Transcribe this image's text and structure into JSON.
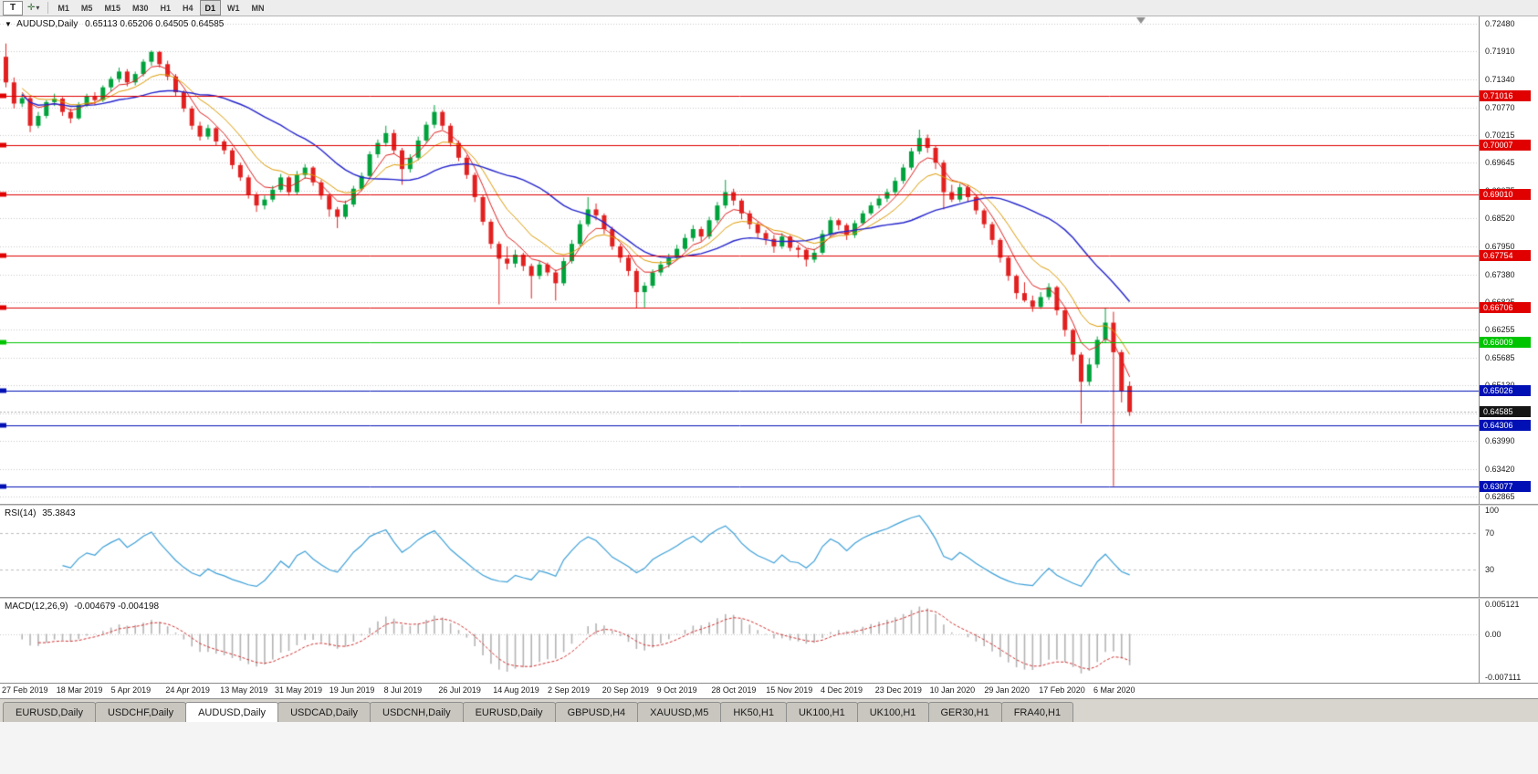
{
  "toolbar": {
    "templates_label": "T",
    "tool_icon": "✛",
    "dropdown_icon": "▾",
    "timeframes": [
      "M1",
      "M5",
      "M15",
      "M30",
      "H1",
      "H4",
      "D1",
      "W1",
      "MN"
    ],
    "active_timeframe": "D1"
  },
  "chart_data": {
    "type": "candlestick",
    "legend": {
      "marker": "▼",
      "symbol": "AUDUSD,Daily",
      "ohlc": "0.65113 0.65206 0.64505 0.64585"
    },
    "up_color": "#00a23c",
    "down_color": "#e22020",
    "ylim": [
      0.6272,
      0.7262
    ],
    "y_ticks": [
      "0.72480",
      "0.71910",
      "0.71340",
      "0.70770",
      "0.70215",
      "0.69645",
      "0.69075",
      "0.68520",
      "0.67950",
      "0.67380",
      "0.66825",
      "0.66255",
      "0.65685",
      "0.65130",
      "0.64560",
      "0.63990",
      "0.63420",
      "0.62865"
    ],
    "x_labels": [
      "27 Feb 2019",
      "18 Mar 2019",
      "5 Apr 2019",
      "24 Apr 2019",
      "13 May 2019",
      "31 May 2019",
      "19 Jun 2019",
      "8 Jul 2019",
      "26 Jul 2019",
      "14 Aug 2019",
      "2 Sep 2019",
      "20 Sep 2019",
      "9 Oct 2019",
      "28 Oct 2019",
      "15 Nov 2019",
      "4 Dec 2019",
      "23 Dec 2019",
      "10 Jan 2020",
      "29 Jan 2020",
      "17 Feb 2020",
      "6 Mar 2020"
    ],
    "candles": [
      [
        0.718,
        0.7207,
        0.7118,
        0.7128
      ],
      [
        0.7128,
        0.7138,
        0.7075,
        0.7085
      ],
      [
        0.7085,
        0.7105,
        0.7078,
        0.7096
      ],
      [
        0.7096,
        0.7099,
        0.7027,
        0.704
      ],
      [
        0.704,
        0.7068,
        0.7035,
        0.706
      ],
      [
        0.706,
        0.7092,
        0.7055,
        0.7088
      ],
      [
        0.7088,
        0.7105,
        0.708,
        0.7095
      ],
      [
        0.7095,
        0.7098,
        0.706,
        0.7068
      ],
      [
        0.7068,
        0.7075,
        0.7045,
        0.7055
      ],
      [
        0.7055,
        0.7088,
        0.7052,
        0.7082
      ],
      [
        0.7082,
        0.7105,
        0.7078,
        0.71
      ],
      [
        0.71,
        0.7108,
        0.7082,
        0.7092
      ],
      [
        0.7092,
        0.7122,
        0.7088,
        0.7118
      ],
      [
        0.7118,
        0.714,
        0.711,
        0.7135
      ],
      [
        0.7135,
        0.7158,
        0.7128,
        0.715
      ],
      [
        0.715,
        0.7155,
        0.712,
        0.7128
      ],
      [
        0.7128,
        0.715,
        0.7122,
        0.7145
      ],
      [
        0.7145,
        0.7175,
        0.714,
        0.717
      ],
      [
        0.717,
        0.7193,
        0.7162,
        0.719
      ],
      [
        0.719,
        0.7192,
        0.7158,
        0.7165
      ],
      [
        0.7165,
        0.7172,
        0.7132,
        0.714
      ],
      [
        0.714,
        0.7145,
        0.71,
        0.7108
      ],
      [
        0.7108,
        0.7112,
        0.7068,
        0.7075
      ],
      [
        0.7075,
        0.708,
        0.7032,
        0.704
      ],
      [
        0.704,
        0.7048,
        0.701,
        0.7018
      ],
      [
        0.7018,
        0.7042,
        0.7012,
        0.7035
      ],
      [
        0.7035,
        0.7038,
        0.7,
        0.7008
      ],
      [
        0.7008,
        0.7012,
        0.6982,
        0.699
      ],
      [
        0.699,
        0.6995,
        0.6952,
        0.696
      ],
      [
        0.696,
        0.6965,
        0.6928,
        0.6935
      ],
      [
        0.6935,
        0.694,
        0.6892,
        0.69
      ],
      [
        0.69,
        0.6905,
        0.6865,
        0.6878
      ],
      [
        0.6878,
        0.6898,
        0.687,
        0.689
      ],
      [
        0.689,
        0.6918,
        0.6885,
        0.691
      ],
      [
        0.691,
        0.6942,
        0.6905,
        0.6935
      ],
      [
        0.6935,
        0.6938,
        0.6898,
        0.6905
      ],
      [
        0.6905,
        0.6948,
        0.69,
        0.694
      ],
      [
        0.694,
        0.6962,
        0.6932,
        0.6955
      ],
      [
        0.6955,
        0.6958,
        0.6918,
        0.6925
      ],
      [
        0.6925,
        0.693,
        0.689,
        0.6898
      ],
      [
        0.6898,
        0.6902,
        0.6855,
        0.687
      ],
      [
        0.687,
        0.6875,
        0.6832,
        0.6855
      ],
      [
        0.6855,
        0.6888,
        0.685,
        0.688
      ],
      [
        0.688,
        0.6918,
        0.6875,
        0.6912
      ],
      [
        0.6912,
        0.6945,
        0.6908,
        0.6938
      ],
      [
        0.6938,
        0.6988,
        0.6932,
        0.6982
      ],
      [
        0.6982,
        0.7012,
        0.6975,
        0.7005
      ],
      [
        0.7005,
        0.704,
        0.6998,
        0.7025
      ],
      [
        0.7025,
        0.7032,
        0.6982,
        0.699
      ],
      [
        0.699,
        0.6995,
        0.692,
        0.6952
      ],
      [
        0.6952,
        0.6982,
        0.6945,
        0.6975
      ],
      [
        0.6975,
        0.7018,
        0.697,
        0.701
      ],
      [
        0.701,
        0.7048,
        0.7005,
        0.7042
      ],
      [
        0.7042,
        0.7082,
        0.7035,
        0.7068
      ],
      [
        0.7068,
        0.7072,
        0.7032,
        0.704
      ],
      [
        0.704,
        0.7045,
        0.6998,
        0.7005
      ],
      [
        0.7005,
        0.701,
        0.6968,
        0.6975
      ],
      [
        0.6975,
        0.698,
        0.6932,
        0.694
      ],
      [
        0.694,
        0.6945,
        0.6885,
        0.6895
      ],
      [
        0.6895,
        0.69,
        0.6838,
        0.6845
      ],
      [
        0.6845,
        0.685,
        0.679,
        0.68
      ],
      [
        0.68,
        0.6805,
        0.6677,
        0.677
      ],
      [
        0.677,
        0.6795,
        0.6748,
        0.676
      ],
      [
        0.676,
        0.6788,
        0.6752,
        0.6778
      ],
      [
        0.6778,
        0.6782,
        0.6745,
        0.6755
      ],
      [
        0.6755,
        0.676,
        0.6689,
        0.6735
      ],
      [
        0.6735,
        0.6765,
        0.6728,
        0.6758
      ],
      [
        0.6758,
        0.6762,
        0.6735,
        0.6742
      ],
      [
        0.6742,
        0.6748,
        0.6685,
        0.672
      ],
      [
        0.672,
        0.6772,
        0.6715,
        0.6765
      ],
      [
        0.6765,
        0.6808,
        0.676,
        0.68
      ],
      [
        0.68,
        0.6848,
        0.6795,
        0.684
      ],
      [
        0.684,
        0.6895,
        0.6835,
        0.687
      ],
      [
        0.687,
        0.6882,
        0.6848,
        0.6858
      ],
      [
        0.6858,
        0.6862,
        0.682,
        0.683
      ],
      [
        0.683,
        0.6835,
        0.6788,
        0.6795
      ],
      [
        0.6795,
        0.68,
        0.6762,
        0.6772
      ],
      [
        0.6772,
        0.6778,
        0.6735,
        0.6745
      ],
      [
        0.6745,
        0.675,
        0.667,
        0.6702
      ],
      [
        0.6702,
        0.6722,
        0.6671,
        0.6715
      ],
      [
        0.6715,
        0.6748,
        0.671,
        0.6742
      ],
      [
        0.6742,
        0.6765,
        0.6735,
        0.6758
      ],
      [
        0.6758,
        0.678,
        0.6752,
        0.6772
      ],
      [
        0.6772,
        0.6798,
        0.6768,
        0.679
      ],
      [
        0.679,
        0.682,
        0.6785,
        0.6812
      ],
      [
        0.6812,
        0.6838,
        0.6805,
        0.683
      ],
      [
        0.683,
        0.6835,
        0.6805,
        0.6815
      ],
      [
        0.6815,
        0.6855,
        0.681,
        0.6848
      ],
      [
        0.6848,
        0.6885,
        0.6842,
        0.6878
      ],
      [
        0.6878,
        0.693,
        0.6872,
        0.6905
      ],
      [
        0.6905,
        0.6912,
        0.6878,
        0.6888
      ],
      [
        0.6888,
        0.6892,
        0.685,
        0.6862
      ],
      [
        0.6862,
        0.6868,
        0.683,
        0.684
      ],
      [
        0.684,
        0.6845,
        0.6812,
        0.6822
      ],
      [
        0.6822,
        0.6828,
        0.6798,
        0.681
      ],
      [
        0.681,
        0.6818,
        0.6782,
        0.6795
      ],
      [
        0.6795,
        0.6822,
        0.679,
        0.6815
      ],
      [
        0.6815,
        0.6818,
        0.6785,
        0.6792
      ],
      [
        0.6792,
        0.6798,
        0.6772,
        0.6788
      ],
      [
        0.6788,
        0.679,
        0.6754,
        0.6768
      ],
      [
        0.6768,
        0.679,
        0.6762,
        0.6782
      ],
      [
        0.6782,
        0.6828,
        0.6778,
        0.682
      ],
      [
        0.682,
        0.6855,
        0.6815,
        0.6848
      ],
      [
        0.6848,
        0.6852,
        0.6828,
        0.6838
      ],
      [
        0.6838,
        0.6842,
        0.6808,
        0.6818
      ],
      [
        0.6818,
        0.6848,
        0.6812,
        0.6842
      ],
      [
        0.6842,
        0.6868,
        0.6838,
        0.6862
      ],
      [
        0.6862,
        0.6885,
        0.6858,
        0.6878
      ],
      [
        0.6878,
        0.6898,
        0.6872,
        0.6892
      ],
      [
        0.6892,
        0.6912,
        0.6885,
        0.6905
      ],
      [
        0.6905,
        0.6935,
        0.69,
        0.6928
      ],
      [
        0.6928,
        0.6962,
        0.6922,
        0.6955
      ],
      [
        0.6955,
        0.6995,
        0.695,
        0.6988
      ],
      [
        0.6988,
        0.7032,
        0.6982,
        0.7015
      ],
      [
        0.7015,
        0.7022,
        0.6985,
        0.6995
      ],
      [
        0.6995,
        0.7,
        0.6952,
        0.6965
      ],
      [
        0.6965,
        0.697,
        0.687,
        0.6905
      ],
      [
        0.6905,
        0.692,
        0.6885,
        0.689
      ],
      [
        0.689,
        0.6922,
        0.6885,
        0.6915
      ],
      [
        0.6915,
        0.692,
        0.6885,
        0.6895
      ],
      [
        0.6895,
        0.69,
        0.686,
        0.6868
      ],
      [
        0.6868,
        0.6872,
        0.6832,
        0.684
      ],
      [
        0.684,
        0.6845,
        0.6798,
        0.6808
      ],
      [
        0.6808,
        0.6812,
        0.6762,
        0.6772
      ],
      [
        0.6772,
        0.6775,
        0.6725,
        0.6735
      ],
      [
        0.6735,
        0.6738,
        0.6688,
        0.67
      ],
      [
        0.67,
        0.6722,
        0.6682,
        0.6685
      ],
      [
        0.6685,
        0.6695,
        0.6662,
        0.6672
      ],
      [
        0.6672,
        0.6702,
        0.6668,
        0.6692
      ],
      [
        0.6692,
        0.672,
        0.6686,
        0.6712
      ],
      [
        0.6712,
        0.6715,
        0.6655,
        0.6665
      ],
      [
        0.6665,
        0.6668,
        0.6612,
        0.6625
      ],
      [
        0.6625,
        0.6628,
        0.6562,
        0.6575
      ],
      [
        0.6575,
        0.658,
        0.6435,
        0.652
      ],
      [
        0.652,
        0.6568,
        0.6512,
        0.6555
      ],
      [
        0.6555,
        0.6612,
        0.6548,
        0.6605
      ],
      [
        0.6605,
        0.667,
        0.66,
        0.664
      ],
      [
        0.664,
        0.6662,
        0.6308,
        0.658
      ],
      [
        0.658,
        0.6585,
        0.6478,
        0.65
      ],
      [
        0.65113,
        0.65206,
        0.64505,
        0.64585
      ]
    ],
    "ma_overlays": [
      {
        "type": "ema",
        "period": 5,
        "color": "#e02020",
        "width": 1
      },
      {
        "type": "ema",
        "period": 10,
        "color": "#dd9a00",
        "width": 1
      },
      {
        "type": "sma",
        "period": 22,
        "color": "#2424cc",
        "width": 1.4
      }
    ],
    "hlines": [
      {
        "price": 0.71016,
        "label": "0.71016",
        "color": "#e00000"
      },
      {
        "price": 0.70007,
        "label": "0.70007",
        "color": "#e00000"
      },
      {
        "price": 0.6901,
        "label": "0.69010",
        "color": "#e00000"
      },
      {
        "price": 0.67754,
        "label": "0.67754",
        "color": "#e00000"
      },
      {
        "price": 0.66706,
        "label": "0.66706",
        "color": "#e00000"
      },
      {
        "price": 0.66009,
        "label": "0.66009",
        "color": "#00c400"
      },
      {
        "price": 0.65026,
        "label": "0.65026",
        "color": "#0010b4"
      },
      {
        "price": 0.64306,
        "label": "0.64306",
        "color": "#0010b4"
      },
      {
        "price": 0.63077,
        "label": "0.63077",
        "color": "#0010b4"
      }
    ],
    "current_price": {
      "label": "0.64585",
      "price": 0.64585,
      "color": "#151515"
    },
    "rsi": {
      "label": "RSI(14)",
      "value": "35.3843",
      "color": "#3da0d8",
      "draw_period": 7,
      "levels": [
        70,
        30
      ],
      "ylim": [
        0,
        100
      ],
      "scale_labels": [
        "100",
        "70",
        "30"
      ]
    },
    "macd": {
      "label": "MACD(12,26,9)",
      "values": "-0.004679 -0.004198",
      "hist_color": "#b4b4b4",
      "signal_color": "#d03030",
      "draw_fast": 5,
      "draw_slow": 10,
      "draw_signal": 4,
      "ylim": [
        -0.007111,
        0.005121
      ],
      "scale_labels": [
        "0.005121",
        "0.00",
        "-0.007111"
      ]
    }
  },
  "tabs": {
    "items": [
      "EURUSD,Daily",
      "USDCHF,Daily",
      "AUDUSD,Daily",
      "USDCAD,Daily",
      "USDCNH,Daily",
      "EURUSD,Daily",
      "GBPUSD,H4",
      "XAUUSD,M5",
      "HK50,H1",
      "UK100,H1",
      "UK100,H1",
      "GER30,H1",
      "FRA40,H1"
    ],
    "active_index": 2
  }
}
